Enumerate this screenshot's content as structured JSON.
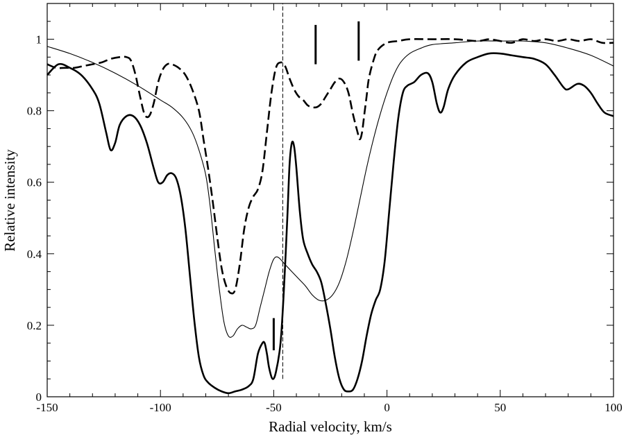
{
  "chart_data": {
    "type": "line",
    "title": "",
    "xlabel": "Radial velocity, km/s",
    "ylabel": "Relative intensity",
    "xlim": [
      -150,
      100
    ],
    "ylim": [
      0,
      1.1
    ],
    "grid": false,
    "legend": "none",
    "x_ticks": [
      -150,
      -100,
      -50,
      0,
      50,
      100
    ],
    "x_tick_labels": [
      "-150",
      "-100",
      "-50",
      "0",
      "50",
      "100"
    ],
    "y_ticks": [
      0,
      0.2,
      0.4,
      0.6,
      0.8,
      1
    ],
    "y_tick_labels": [
      "0",
      "0.2",
      "0.4",
      "0.6",
      "0.8",
      "1"
    ],
    "series": [
      {
        "style": "thick-solid",
        "points": [
          [
            -150,
            0.9
          ],
          [
            -145,
            0.93
          ],
          [
            -140,
            0.92
          ],
          [
            -135,
            0.9
          ],
          [
            -130,
            0.86
          ],
          [
            -127,
            0.82
          ],
          [
            -124,
            0.74
          ],
          [
            -122,
            0.69
          ],
          [
            -120,
            0.71
          ],
          [
            -118,
            0.76
          ],
          [
            -115,
            0.785
          ],
          [
            -112,
            0.785
          ],
          [
            -109,
            0.76
          ],
          [
            -106,
            0.71
          ],
          [
            -103,
            0.64
          ],
          [
            -101,
            0.6
          ],
          [
            -99,
            0.6
          ],
          [
            -97,
            0.62
          ],
          [
            -95,
            0.625
          ],
          [
            -93,
            0.61
          ],
          [
            -91,
            0.56
          ],
          [
            -89,
            0.47
          ],
          [
            -87,
            0.34
          ],
          [
            -85,
            0.21
          ],
          [
            -83,
            0.11
          ],
          [
            -81,
            0.06
          ],
          [
            -79,
            0.04
          ],
          [
            -76,
            0.025
          ],
          [
            -73,
            0.015
          ],
          [
            -70,
            0.01
          ],
          [
            -67,
            0.015
          ],
          [
            -64,
            0.02
          ],
          [
            -61,
            0.03
          ],
          [
            -59,
            0.05
          ],
          [
            -57,
            0.12
          ],
          [
            -55,
            0.15
          ],
          [
            -54,
            0.15
          ],
          [
            -53,
            0.12
          ],
          [
            -52,
            0.08
          ],
          [
            -50.5,
            0.05
          ],
          [
            -49,
            0.07
          ],
          [
            -47,
            0.15
          ],
          [
            -45.5,
            0.3
          ],
          [
            -44,
            0.5
          ],
          [
            -43,
            0.65
          ],
          [
            -42,
            0.71
          ],
          [
            -41,
            0.7
          ],
          [
            -40,
            0.64
          ],
          [
            -38.5,
            0.52
          ],
          [
            -37,
            0.44
          ],
          [
            -35,
            0.4
          ],
          [
            -33,
            0.37
          ],
          [
            -31,
            0.35
          ],
          [
            -29,
            0.32
          ],
          [
            -27,
            0.26
          ],
          [
            -25,
            0.19
          ],
          [
            -23,
            0.11
          ],
          [
            -21,
            0.05
          ],
          [
            -19,
            0.02
          ],
          [
            -17,
            0.015
          ],
          [
            -15,
            0.02
          ],
          [
            -13,
            0.05
          ],
          [
            -11,
            0.1
          ],
          [
            -9,
            0.17
          ],
          [
            -7,
            0.23
          ],
          [
            -5,
            0.27
          ],
          [
            -3,
            0.3
          ],
          [
            -1,
            0.38
          ],
          [
            1,
            0.52
          ],
          [
            3,
            0.66
          ],
          [
            5,
            0.78
          ],
          [
            7,
            0.85
          ],
          [
            9,
            0.87
          ],
          [
            12,
            0.88
          ],
          [
            15,
            0.9
          ],
          [
            18,
            0.905
          ],
          [
            20,
            0.88
          ],
          [
            22,
            0.82
          ],
          [
            23.5,
            0.795
          ],
          [
            25,
            0.81
          ],
          [
            27,
            0.86
          ],
          [
            30,
            0.9
          ],
          [
            35,
            0.935
          ],
          [
            40,
            0.95
          ],
          [
            45,
            0.96
          ],
          [
            50,
            0.96
          ],
          [
            55,
            0.955
          ],
          [
            60,
            0.95
          ],
          [
            65,
            0.945
          ],
          [
            70,
            0.93
          ],
          [
            74,
            0.9
          ],
          [
            78,
            0.865
          ],
          [
            80,
            0.86
          ],
          [
            84,
            0.875
          ],
          [
            87,
            0.87
          ],
          [
            90,
            0.85
          ],
          [
            93,
            0.82
          ],
          [
            96,
            0.795
          ],
          [
            100,
            0.785
          ]
        ]
      },
      {
        "style": "thin-solid",
        "points": [
          [
            -150,
            0.98
          ],
          [
            -140,
            0.96
          ],
          [
            -130,
            0.935
          ],
          [
            -120,
            0.905
          ],
          [
            -110,
            0.87
          ],
          [
            -100,
            0.83
          ],
          [
            -95,
            0.81
          ],
          [
            -90,
            0.78
          ],
          [
            -86,
            0.74
          ],
          [
            -83,
            0.69
          ],
          [
            -80,
            0.62
          ],
          [
            -78,
            0.53
          ],
          [
            -76,
            0.41
          ],
          [
            -74,
            0.3
          ],
          [
            -72,
            0.21
          ],
          [
            -70,
            0.17
          ],
          [
            -68,
            0.17
          ],
          [
            -66,
            0.19
          ],
          [
            -64,
            0.2
          ],
          [
            -62,
            0.195
          ],
          [
            -60,
            0.19
          ],
          [
            -58,
            0.2
          ],
          [
            -56,
            0.25
          ],
          [
            -54,
            0.3
          ],
          [
            -52,
            0.35
          ],
          [
            -50,
            0.385
          ],
          [
            -48,
            0.39
          ],
          [
            -45,
            0.37
          ],
          [
            -42,
            0.35
          ],
          [
            -39,
            0.33
          ],
          [
            -36,
            0.31
          ],
          [
            -33,
            0.285
          ],
          [
            -30,
            0.27
          ],
          [
            -27,
            0.27
          ],
          [
            -24,
            0.285
          ],
          [
            -21,
            0.32
          ],
          [
            -18,
            0.38
          ],
          [
            -15,
            0.46
          ],
          [
            -12,
            0.55
          ],
          [
            -9,
            0.64
          ],
          [
            -6,
            0.72
          ],
          [
            -3,
            0.79
          ],
          [
            0,
            0.85
          ],
          [
            3,
            0.9
          ],
          [
            6,
            0.935
          ],
          [
            10,
            0.96
          ],
          [
            15,
            0.975
          ],
          [
            20,
            0.985
          ],
          [
            30,
            0.99
          ],
          [
            40,
            0.995
          ],
          [
            50,
            0.995
          ],
          [
            60,
            0.995
          ],
          [
            70,
            0.99
          ],
          [
            80,
            0.975
          ],
          [
            90,
            0.955
          ],
          [
            100,
            0.925
          ]
        ]
      },
      {
        "style": "thick-dashed",
        "points": [
          [
            -150,
            0.93
          ],
          [
            -146,
            0.92
          ],
          [
            -142,
            0.92
          ],
          [
            -138,
            0.92
          ],
          [
            -134,
            0.925
          ],
          [
            -130,
            0.93
          ],
          [
            -126,
            0.935
          ],
          [
            -122,
            0.945
          ],
          [
            -118,
            0.95
          ],
          [
            -115,
            0.95
          ],
          [
            -113,
            0.94
          ],
          [
            -111,
            0.9
          ],
          [
            -109,
            0.84
          ],
          [
            -107,
            0.79
          ],
          [
            -105,
            0.785
          ],
          [
            -103,
            0.82
          ],
          [
            -101,
            0.88
          ],
          [
            -99,
            0.915
          ],
          [
            -97,
            0.93
          ],
          [
            -95,
            0.93
          ],
          [
            -92,
            0.92
          ],
          [
            -89,
            0.9
          ],
          [
            -86,
            0.86
          ],
          [
            -83,
            0.8
          ],
          [
            -81,
            0.72
          ],
          [
            -79,
            0.64
          ],
          [
            -77,
            0.55
          ],
          [
            -75,
            0.45
          ],
          [
            -73,
            0.36
          ],
          [
            -71,
            0.31
          ],
          [
            -69,
            0.29
          ],
          [
            -67,
            0.3
          ],
          [
            -65,
            0.37
          ],
          [
            -63,
            0.47
          ],
          [
            -61,
            0.53
          ],
          [
            -59,
            0.56
          ],
          [
            -57,
            0.58
          ],
          [
            -55,
            0.63
          ],
          [
            -53,
            0.74
          ],
          [
            -51,
            0.85
          ],
          [
            -49,
            0.92
          ],
          [
            -47,
            0.935
          ],
          [
            -45,
            0.925
          ],
          [
            -43,
            0.89
          ],
          [
            -41,
            0.86
          ],
          [
            -39,
            0.84
          ],
          [
            -37,
            0.83
          ],
          [
            -35,
            0.815
          ],
          [
            -33,
            0.81
          ],
          [
            -31,
            0.81
          ],
          [
            -29,
            0.82
          ],
          [
            -27,
            0.84
          ],
          [
            -25,
            0.86
          ],
          [
            -23,
            0.88
          ],
          [
            -21,
            0.89
          ],
          [
            -19,
            0.88
          ],
          [
            -17,
            0.85
          ],
          [
            -15,
            0.79
          ],
          [
            -13,
            0.74
          ],
          [
            -12,
            0.72
          ],
          [
            -11,
            0.74
          ],
          [
            -10,
            0.79
          ],
          [
            -9,
            0.84
          ],
          [
            -8,
            0.89
          ],
          [
            -6,
            0.94
          ],
          [
            -4,
            0.97
          ],
          [
            0,
            0.99
          ],
          [
            5,
            0.995
          ],
          [
            10,
            1.0
          ],
          [
            20,
            1.0
          ],
          [
            30,
            1.0
          ],
          [
            40,
            0.995
          ],
          [
            45,
            1.0
          ],
          [
            50,
            0.995
          ],
          [
            55,
            0.99
          ],
          [
            60,
            1.0
          ],
          [
            65,
            0.995
          ],
          [
            70,
            1.0
          ],
          [
            75,
            0.995
          ],
          [
            80,
            1.0
          ],
          [
            85,
            0.995
          ],
          [
            90,
            1.0
          ],
          [
            95,
            0.99
          ],
          [
            100,
            0.99
          ]
        ]
      }
    ],
    "reference_lines": [
      {
        "style": "thin-dashed-vertical",
        "x": -46,
        "y": [
          0.05,
          1.1
        ]
      }
    ],
    "markers": [
      {
        "x": -50,
        "y": [
          0.13,
          0.22
        ]
      },
      {
        "x": -31.5,
        "y": [
          0.93,
          1.04
        ]
      },
      {
        "x": -12.5,
        "y": [
          0.94,
          1.05
        ]
      }
    ]
  }
}
